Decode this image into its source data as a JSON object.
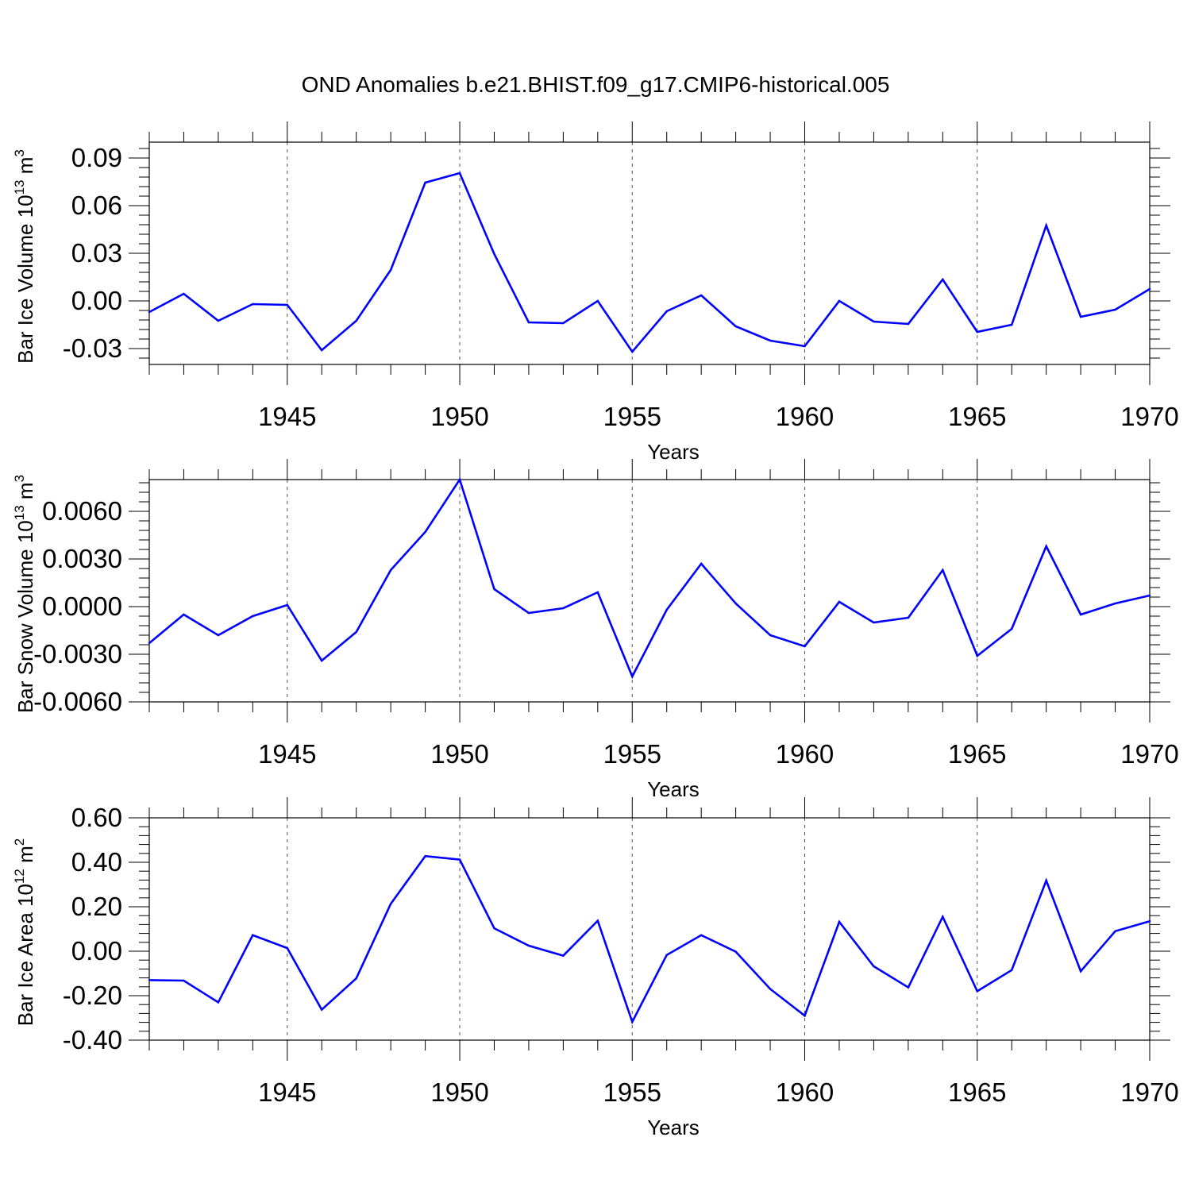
{
  "title": "OND Anomalies b.e21.BHIST.f09_g17.CMIP6-historical.005",
  "line_color": "#0000ff",
  "chart_data": [
    {
      "type": "line",
      "xlabel": "Years",
      "ylabel_prefix": "Bar Ice Volume 10",
      "ylabel_exp": "13",
      "ylabel_unit": " m",
      "ylabel_unit_exp": "3",
      "xlim": [
        1941,
        1970
      ],
      "ylim": [
        -0.04,
        0.1
      ],
      "yticks": [
        -0.03,
        0.0,
        0.03,
        0.06,
        0.09
      ],
      "ytick_labels": [
        "-0.03",
        "0.00",
        "0.03",
        "0.06",
        "0.09"
      ],
      "xticks": [
        1945,
        1950,
        1955,
        1960,
        1965,
        1970
      ],
      "xtick_labels": [
        "1945",
        "1950",
        "1955",
        "1960",
        "1965",
        "1970"
      ],
      "x": [
        1941,
        1942,
        1943,
        1944,
        1945,
        1946,
        1947,
        1948,
        1949,
        1950,
        1951,
        1952,
        1953,
        1954,
        1955,
        1956,
        1957,
        1958,
        1959,
        1960,
        1961,
        1962,
        1963,
        1964,
        1965,
        1966,
        1967,
        1968,
        1969,
        1970
      ],
      "y": [
        -0.007,
        0.0045,
        -0.0125,
        -0.002,
        -0.0025,
        -0.031,
        -0.0125,
        0.0195,
        0.0745,
        0.0805,
        0.0295,
        -0.0135,
        -0.014,
        0.0,
        -0.032,
        -0.0065,
        0.0035,
        -0.016,
        -0.025,
        -0.0285,
        0.0,
        -0.013,
        -0.0145,
        0.0135,
        -0.0195,
        -0.015,
        0.0475,
        -0.01,
        -0.0055,
        0.0075
      ]
    },
    {
      "type": "line",
      "xlabel": "Years",
      "ylabel_prefix": "Bar Snow Volume 10",
      "ylabel_exp": "13",
      "ylabel_unit": " m",
      "ylabel_unit_exp": "3",
      "xlim": [
        1941,
        1970
      ],
      "ylim": [
        -0.006,
        0.008
      ],
      "yticks": [
        -0.006,
        -0.003,
        0.0,
        0.003,
        0.006
      ],
      "ytick_labels": [
        "-0.0060",
        "-0.0030",
        "0.0000",
        "0.0030",
        "0.0060"
      ],
      "xticks": [
        1945,
        1950,
        1955,
        1960,
        1965,
        1970
      ],
      "xtick_labels": [
        "1945",
        "1950",
        "1955",
        "1960",
        "1965",
        "1970"
      ],
      "x": [
        1941,
        1942,
        1943,
        1944,
        1945,
        1946,
        1947,
        1948,
        1949,
        1950,
        1951,
        1952,
        1953,
        1954,
        1955,
        1956,
        1957,
        1958,
        1959,
        1960,
        1961,
        1962,
        1963,
        1964,
        1965,
        1966,
        1967,
        1968,
        1969,
        1970
      ],
      "y": [
        -0.0023,
        -0.0005,
        -0.0018,
        -0.0006,
        0.0001,
        -0.0034,
        -0.0016,
        0.0023,
        0.0047,
        0.008,
        0.0011,
        -0.0004,
        -0.0001,
        0.0009,
        -0.0044,
        -0.0002,
        0.0027,
        0.0002,
        -0.0018,
        -0.0025,
        0.0003,
        -0.001,
        -0.0007,
        0.0023,
        -0.0031,
        -0.0014,
        0.0038,
        -0.0005,
        0.0002,
        0.0007
      ]
    },
    {
      "type": "line",
      "xlabel": "Years",
      "ylabel_prefix": "Bar Ice Area 10",
      "ylabel_exp": "12",
      "ylabel_unit": " m",
      "ylabel_unit_exp": "2",
      "xlim": [
        1941,
        1970
      ],
      "ylim": [
        -0.4,
        0.6
      ],
      "yticks": [
        -0.4,
        -0.2,
        0.0,
        0.2,
        0.4,
        0.6
      ],
      "ytick_labels": [
        "-0.40",
        "-0.20",
        "0.00",
        "0.20",
        "0.40",
        "0.60"
      ],
      "xticks": [
        1945,
        1950,
        1955,
        1960,
        1965,
        1970
      ],
      "xtick_labels": [
        "1945",
        "1950",
        "1955",
        "1960",
        "1965",
        "1970"
      ],
      "x": [
        1941,
        1942,
        1943,
        1944,
        1945,
        1946,
        1947,
        1948,
        1949,
        1950,
        1951,
        1952,
        1953,
        1954,
        1955,
        1956,
        1957,
        1958,
        1959,
        1960,
        1961,
        1962,
        1963,
        1964,
        1965,
        1966,
        1967,
        1968,
        1969,
        1970
      ],
      "y": [
        -0.13,
        -0.132,
        -0.23,
        0.072,
        0.014,
        -0.263,
        -0.122,
        0.213,
        0.428,
        0.412,
        0.103,
        0.025,
        -0.02,
        0.137,
        -0.318,
        -0.017,
        0.072,
        -0.002,
        -0.17,
        -0.29,
        0.132,
        -0.068,
        -0.163,
        0.155,
        -0.18,
        -0.085,
        0.318,
        -0.09,
        0.09,
        0.135
      ]
    }
  ]
}
